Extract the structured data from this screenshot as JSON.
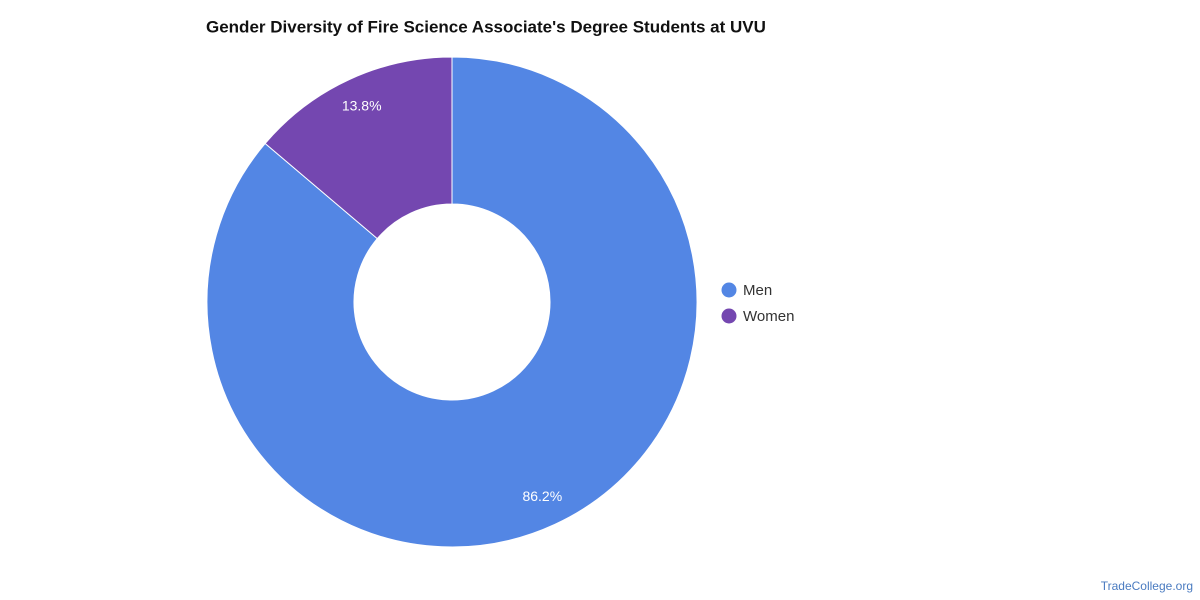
{
  "chart_data": {
    "type": "donut",
    "title": "Gender Diversity of Fire Science Associate's Degree Students at UVU",
    "categories": [
      "Men",
      "Women"
    ],
    "values": [
      86.2,
      13.8
    ],
    "value_labels": [
      "86.2%",
      "13.8%"
    ],
    "colors": [
      "#5386e4",
      "#7447b0"
    ],
    "legend": "right",
    "credit": "TradeCollege.org"
  }
}
